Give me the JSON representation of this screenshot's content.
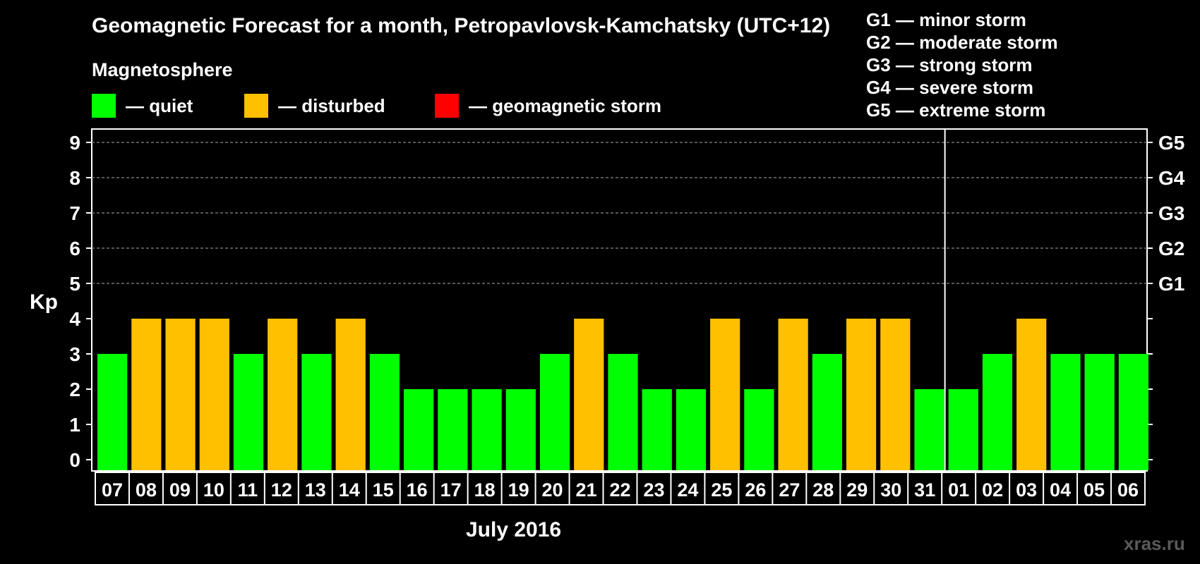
{
  "chart_data": {
    "type": "bar",
    "title": "Geomagnetic Forecast for a month, Petropavlovsk-Kamchatsky (UTC+12)",
    "xlabel": "July 2016",
    "ylabel": "Kp",
    "ylim": [
      0,
      9
    ],
    "yticks": [
      0,
      1,
      2,
      3,
      4,
      5,
      6,
      7,
      8,
      9
    ],
    "grid": "dashed horizontal",
    "right_axis_labels": [
      {
        "kp": 5,
        "label": "G1"
      },
      {
        "kp": 6,
        "label": "G2"
      },
      {
        "kp": 7,
        "label": "G3"
      },
      {
        "kp": 8,
        "label": "G4"
      },
      {
        "kp": 9,
        "label": "G5"
      }
    ],
    "categories": [
      "07",
      "08",
      "09",
      "10",
      "11",
      "12",
      "13",
      "14",
      "15",
      "16",
      "17",
      "18",
      "19",
      "20",
      "21",
      "22",
      "23",
      "24",
      "25",
      "26",
      "27",
      "28",
      "29",
      "30",
      "31",
      "01",
      "02",
      "03",
      "04",
      "05",
      "06"
    ],
    "values": [
      3,
      4,
      4,
      4,
      3,
      4,
      3,
      4,
      3,
      2,
      2,
      2,
      2,
      3,
      4,
      3,
      2,
      2,
      4,
      2,
      4,
      3,
      4,
      4,
      2,
      2,
      3,
      4,
      3,
      3,
      3
    ],
    "status": [
      "quiet",
      "disturbed",
      "disturbed",
      "disturbed",
      "quiet",
      "disturbed",
      "quiet",
      "disturbed",
      "quiet",
      "quiet",
      "quiet",
      "quiet",
      "quiet",
      "quiet",
      "disturbed",
      "quiet",
      "quiet",
      "quiet",
      "disturbed",
      "quiet",
      "disturbed",
      "quiet",
      "disturbed",
      "disturbed",
      "quiet",
      "quiet",
      "quiet",
      "disturbed",
      "quiet",
      "quiet",
      "quiet"
    ],
    "month_divider_after": "31"
  },
  "colors": {
    "quiet": "#00ff00",
    "disturbed": "#ffc000",
    "storm": "#ff0000",
    "background": "#000000",
    "grid": "#8a8a8a"
  },
  "legend": {
    "heading": "Magnetosphere",
    "quiet": "— quiet",
    "disturbed": "— disturbed",
    "storm": "— geomagnetic storm"
  },
  "scale_legend": [
    "G1 — minor storm",
    "G2 — moderate storm",
    "G3 — strong storm",
    "G4 — severe storm",
    "G5 — extreme storm"
  ],
  "credit": "xras.ru"
}
